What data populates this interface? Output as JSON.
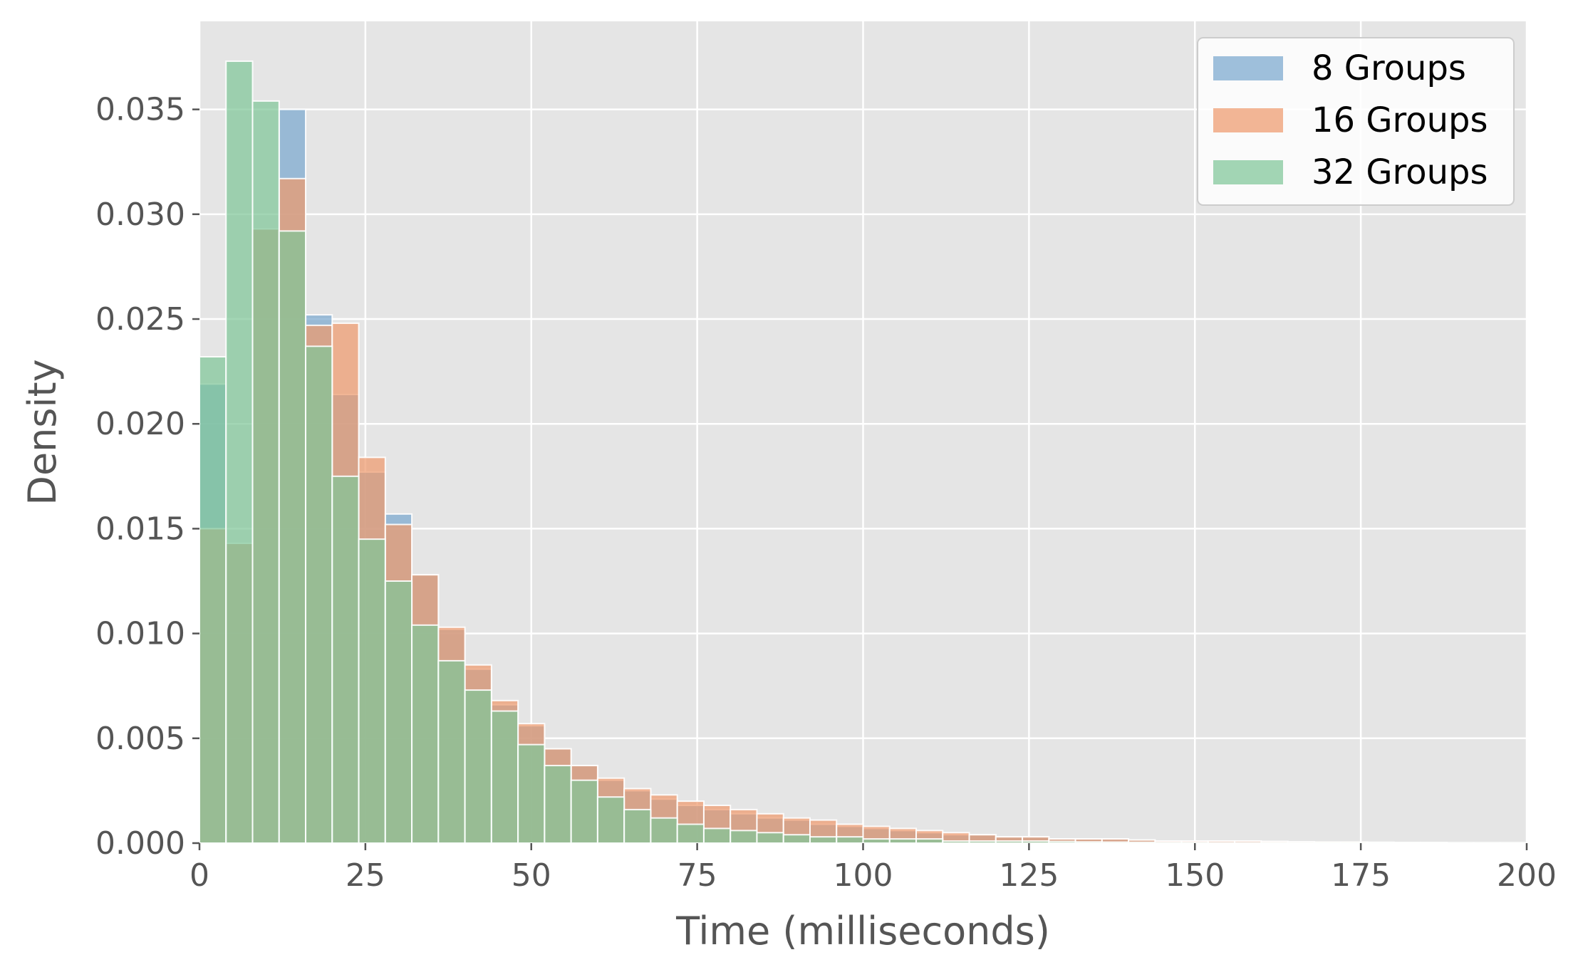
{
  "chart_data": {
    "type": "histogram",
    "title": "",
    "xlabel": "Time (milliseconds)",
    "ylabel": "Density",
    "xlim": [
      0,
      200
    ],
    "ylim": [
      0,
      0.0392
    ],
    "x_ticks": [
      0,
      25,
      50,
      75,
      100,
      125,
      150,
      175,
      200
    ],
    "y_ticks": [
      0.0,
      0.005,
      0.01,
      0.015,
      0.02,
      0.025,
      0.03,
      0.035
    ],
    "x_tick_labels": [
      "0",
      "25",
      "50",
      "75",
      "100",
      "125",
      "150",
      "175",
      "200"
    ],
    "y_tick_labels": [
      "0.000",
      "0.005",
      "0.010",
      "0.015",
      "0.020",
      "0.025",
      "0.030",
      "0.035"
    ],
    "grid": true,
    "legend_position": "top-right",
    "bin_width": 4,
    "bin_start": 0,
    "series": [
      {
        "name": "8 Groups",
        "color": "#7aa7cf",
        "values": [
          0.0219,
          0.0143,
          0.0293,
          0.035,
          0.0252,
          0.0214,
          0.0177,
          0.0157,
          0.0128,
          0.0102,
          0.0083,
          0.0066,
          0.0056,
          0.0045,
          0.0037,
          0.003,
          0.0025,
          0.0021,
          0.0018,
          0.0016,
          0.0014,
          0.0012,
          0.0011,
          0.0009,
          0.0008,
          0.0007,
          0.0006,
          0.0005,
          0.0004,
          0.0004,
          0.0003,
          0.0003,
          0.0002,
          0.0002,
          0.0002,
          0.00015,
          0.0001,
          0.0001,
          0.0001,
          0.0001,
          8e-05,
          6e-05,
          5e-05,
          5e-05,
          4e-05,
          3e-05,
          3e-05,
          2e-05,
          2e-05,
          2e-05
        ]
      },
      {
        "name": "16 Groups",
        "color": "#ee9a6e",
        "values": [
          0.015,
          0.0143,
          0.0293,
          0.0317,
          0.0247,
          0.0248,
          0.0184,
          0.0152,
          0.0128,
          0.0103,
          0.0085,
          0.0068,
          0.0057,
          0.0045,
          0.0037,
          0.0031,
          0.0026,
          0.0023,
          0.002,
          0.0018,
          0.0016,
          0.0014,
          0.0012,
          0.0011,
          0.0009,
          0.0008,
          0.0007,
          0.0006,
          0.0005,
          0.0004,
          0.0003,
          0.0003,
          0.0002,
          0.0002,
          0.0002,
          0.00015,
          0.0001,
          0.0001,
          0.0001,
          0.0001,
          8e-05,
          6e-05,
          5e-05,
          5e-05,
          4e-05,
          3e-05,
          3e-05,
          2e-05,
          2e-05,
          2e-05
        ]
      },
      {
        "name": "32 Groups",
        "color": "#7fc698",
        "values": [
          0.0232,
          0.0373,
          0.0354,
          0.0292,
          0.0237,
          0.0175,
          0.0145,
          0.0125,
          0.0104,
          0.0087,
          0.0073,
          0.0063,
          0.0047,
          0.0037,
          0.003,
          0.0022,
          0.0016,
          0.0012,
          0.0009,
          0.0007,
          0.0006,
          0.0005,
          0.0004,
          0.0003,
          0.0003,
          0.0002,
          0.0002,
          0.0002,
          0.0001,
          0.0001,
          0.0001,
          0.0001,
          8e-05,
          6e-05,
          5e-05,
          4e-05,
          3e-05,
          3e-05,
          2e-05,
          2e-05,
          2e-05,
          1e-05,
          1e-05,
          1e-05,
          1e-05,
          1e-05,
          1e-05,
          1e-05,
          1e-05,
          1e-05
        ]
      }
    ]
  }
}
